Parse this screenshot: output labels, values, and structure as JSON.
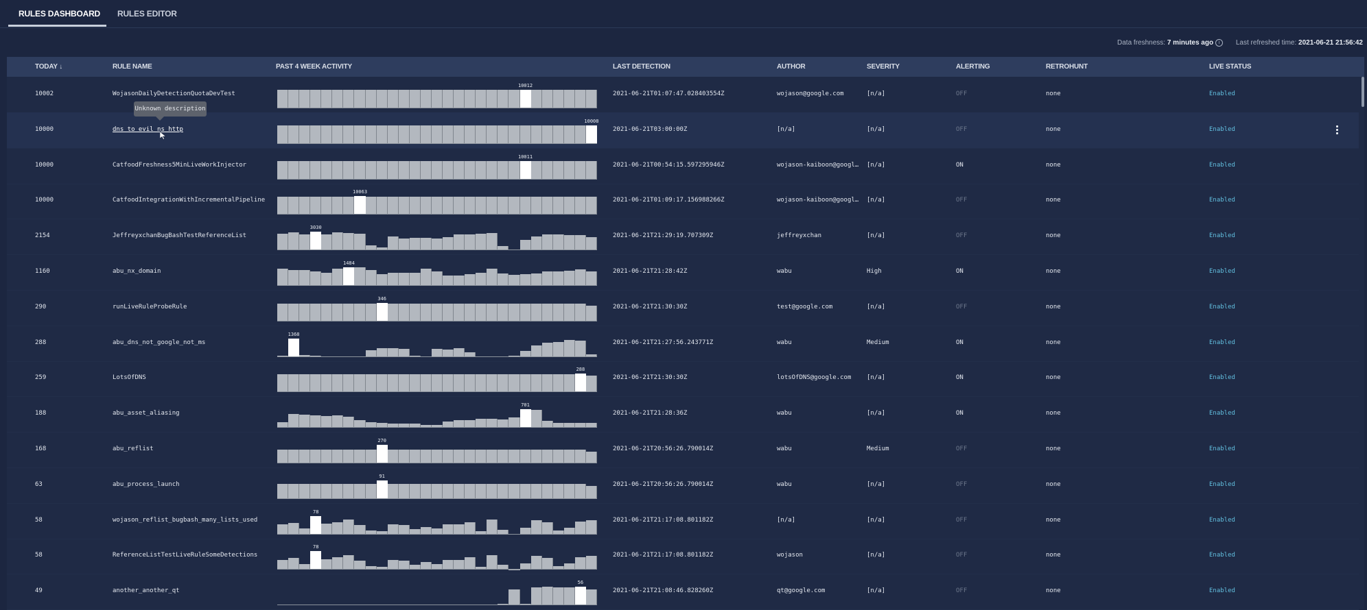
{
  "tabs": [
    {
      "label": "RULES DASHBOARD",
      "active": true
    },
    {
      "label": "RULES EDITOR",
      "active": false
    }
  ],
  "freshness": {
    "label": "Data freshness:",
    "value": "7 minutes ago",
    "refreshed_label": "Last refreshed time:",
    "refreshed_value": "2021-06-21 21:56:42"
  },
  "columns": [
    "TODAY ↓",
    "RULE NAME",
    "PAST 4 WEEK ACTIVITY",
    "LAST DETECTION",
    "AUTHOR",
    "SEVERITY",
    "ALERTING",
    "RETROHUNT",
    "LIVE STATUS"
  ],
  "tooltip": "Unknown description",
  "colors": {
    "background": "#1c2640",
    "header": "#2e3d5e",
    "enabled": "#62bfdf",
    "off": "#6c778b",
    "bar": "#b3b8bf",
    "peak_bar": "#ffffff"
  },
  "rows": [
    {
      "today": "10002",
      "name": "WojasonDailyDetectionQuotaDevTest",
      "last": "2021-06-21T01:07:47.028403554Z",
      "author": "wojason@google.com",
      "severity": "[n/a]",
      "alerting": "OFF",
      "retrohunt": "none",
      "status": "Enabled",
      "peak": "10012",
      "peak_index": 22,
      "activity": [
        10000,
        10000,
        10000,
        10000,
        10000,
        10000,
        10000,
        10000,
        10000,
        10000,
        10000,
        10000,
        10000,
        10000,
        10000,
        10000,
        10000,
        10000,
        10000,
        10000,
        10000,
        10000,
        10012,
        10000,
        10000,
        10000,
        10000,
        10000,
        10000
      ]
    },
    {
      "today": "10000",
      "name": "dns_to_evil_ns_http",
      "last": "2021-06-21T03:00:00Z",
      "author": "[n/a]",
      "severity": "[n/a]",
      "alerting": "OFF",
      "retrohunt": "none",
      "status": "Enabled",
      "peak": "10008",
      "peak_index": 28,
      "hover": true,
      "activity": [
        10000,
        10000,
        10000,
        10000,
        10000,
        10000,
        10000,
        10000,
        10000,
        10000,
        10000,
        10000,
        10000,
        10000,
        10000,
        10000,
        10000,
        10000,
        10000,
        10000,
        10000,
        10000,
        10000,
        10000,
        10000,
        10000,
        10000,
        10000,
        10008
      ]
    },
    {
      "today": "10000",
      "name": "CatfoodFreshness5MinLiveWorkInjector",
      "last": "2021-06-21T00:54:15.597295946Z",
      "author": "wojason-kaiboon@googl…",
      "severity": "[n/a]",
      "alerting": "ON",
      "retrohunt": "none",
      "status": "Enabled",
      "peak": "10011",
      "peak_index": 22,
      "activity": [
        10000,
        10000,
        10000,
        10000,
        10000,
        10000,
        10000,
        10000,
        10000,
        10000,
        10000,
        10000,
        10000,
        10000,
        10000,
        10000,
        10000,
        10000,
        10000,
        10000,
        10000,
        10000,
        10011,
        10000,
        10000,
        10000,
        10000,
        10000,
        10000
      ]
    },
    {
      "today": "10000",
      "name": "CatfoodIntegrationWithIncrementalPipeline",
      "last": "2021-06-21T01:09:17.156988266Z",
      "author": "wojason-kaiboon@googl…",
      "severity": "[n/a]",
      "alerting": "OFF",
      "retrohunt": "none",
      "status": "Enabled",
      "peak": "10063",
      "peak_index": 7,
      "activity": [
        10000,
        10000,
        10000,
        10000,
        10000,
        10000,
        10000,
        10063,
        10000,
        10000,
        10000,
        10000,
        10000,
        10000,
        10000,
        10000,
        10000,
        10000,
        10000,
        10000,
        10000,
        10000,
        10000,
        10000,
        10000,
        10000,
        10000,
        10000,
        10000
      ]
    },
    {
      "today": "2154",
      "name": "JeffreyxchanBugBashTestReferenceList",
      "last": "2021-06-21T21:29:19.707309Z",
      "author": "jeffreyxchan",
      "severity": "[n/a]",
      "alerting": "OFF",
      "retrohunt": "none",
      "status": "Enabled",
      "peak": "3030",
      "peak_index": 3,
      "activity": [
        2765,
        2990,
        2650,
        3030,
        2575,
        2990,
        2840,
        2765,
        760,
        455,
        2270,
        1970,
        2080,
        2080,
        1970,
        2200,
        2650,
        2650,
        2730,
        2840,
        680,
        190,
        1670,
        2270,
        2650,
        2650,
        2460,
        2540,
        2160
      ]
    },
    {
      "today": "1160",
      "name": "abu_nx_domain",
      "last": "2021-06-21T21:28:42Z",
      "author": "wabu",
      "severity": "High",
      "alerting": "ON",
      "retrohunt": "none",
      "status": "Enabled",
      "peak": "1484",
      "peak_index": 6,
      "activity": [
        1391,
        1261,
        1261,
        1169,
        1057,
        1391,
        1484,
        1460,
        1261,
        928,
        1057,
        1057,
        1057,
        1391,
        1150,
        835,
        835,
        928,
        1020,
        1354,
        965,
        872,
        928,
        965,
        1150,
        1150,
        1206,
        1336,
        1150
      ]
    },
    {
      "today": "290",
      "name": "runLiveRuleProbeRule",
      "last": "2021-06-21T21:30:30Z",
      "author": "test@google.com",
      "severity": "[n/a]",
      "alerting": "OFF",
      "retrohunt": "none",
      "status": "Enabled",
      "peak": "346",
      "peak_index": 9,
      "activity": [
        329,
        329,
        329,
        329,
        329,
        329,
        329,
        329,
        329,
        346,
        329,
        329,
        329,
        329,
        329,
        329,
        329,
        329,
        329,
        329,
        329,
        329,
        329,
        329,
        329,
        329,
        329,
        329,
        294
      ]
    },
    {
      "today": "288",
      "name": "abu_dns_not_google_not_ms",
      "last": "2021-06-21T21:27:56.243771Z",
      "author": "wabu",
      "severity": "Medium",
      "alerting": "ON",
      "retrohunt": "none",
      "status": "Enabled",
      "peak": "1368",
      "peak_index": 1,
      "activity": [
        86,
        1368,
        137,
        103,
        17,
        17,
        34,
        34,
        479,
        650,
        650,
        599,
        86,
        17,
        599,
        513,
        650,
        342,
        51,
        0,
        0,
        86,
        428,
        855,
        1060,
        1111,
        1231,
        1197,
        205
      ]
    },
    {
      "today": "259",
      "name": "LotsOfDNS",
      "last": "2021-06-21T21:30:30Z",
      "author": "lotsOfDNS@google.com",
      "severity": "[n/a]",
      "alerting": "ON",
      "retrohunt": "none",
      "status": "Enabled",
      "peak": "288",
      "peak_index": 27,
      "activity": [
        286,
        286,
        286,
        286,
        286,
        286,
        286,
        286,
        286,
        286,
        286,
        286,
        286,
        286,
        286,
        286,
        286,
        286,
        286,
        286,
        286,
        286,
        286,
        286,
        286,
        286,
        286,
        288,
        259
      ]
    },
    {
      "today": "188",
      "name": "abu_asset_aliasing",
      "last": "2021-06-21T21:28:36Z",
      "author": "wabu",
      "severity": "[n/a]",
      "alerting": "ON",
      "retrohunt": "none",
      "status": "Enabled",
      "peak": "701",
      "peak_index": 22,
      "activity": [
        219,
        526,
        499,
        482,
        456,
        464,
        420,
        280,
        219,
        193,
        149,
        158,
        158,
        105,
        105,
        245,
        280,
        280,
        333,
        350,
        307,
        394,
        701,
        683,
        263,
        175,
        175,
        193,
        175
      ]
    },
    {
      "today": "168",
      "name": "abu_reflist",
      "last": "2021-06-21T20:56:26.790014Z",
      "author": "wabu",
      "severity": "Medium",
      "alerting": "OFF",
      "retrohunt": "none",
      "status": "Enabled",
      "peak": "270",
      "peak_index": 9,
      "activity": [
        196,
        196,
        196,
        196,
        196,
        196,
        196,
        196,
        196,
        270,
        196,
        196,
        196,
        196,
        196,
        196,
        196,
        196,
        196,
        196,
        196,
        196,
        196,
        196,
        196,
        196,
        196,
        196,
        169
      ]
    },
    {
      "today": "63",
      "name": "abu_process_launch",
      "last": "2021-06-21T20:56:26.790014Z",
      "author": "wabu",
      "severity": "[n/a]",
      "alerting": "OFF",
      "retrohunt": "none",
      "status": "Enabled",
      "peak": "91",
      "peak_index": 9,
      "activity": [
        72,
        72,
        72,
        72,
        72,
        72,
        72,
        72,
        72,
        91,
        72,
        72,
        72,
        72,
        72,
        72,
        72,
        72,
        72,
        72,
        72,
        72,
        72,
        72,
        72,
        72,
        72,
        72,
        63
      ]
    },
    {
      "today": "58",
      "name": "wojason_reflist_bugbash_many_lists_used",
      "last": "2021-06-21T21:17:08.801182Z",
      "author": "[n/a]",
      "severity": "[n/a]",
      "alerting": "OFF",
      "retrohunt": "none",
      "status": "Enabled",
      "peak": "78",
      "peak_index": 3,
      "activity": [
        42,
        49,
        24,
        78,
        44,
        52,
        61,
        39,
        17,
        13,
        41,
        39,
        22,
        32,
        24,
        41,
        42,
        52,
        12,
        63,
        20,
        2,
        27,
        59,
        51,
        17,
        27,
        54,
        59
      ]
    },
    {
      "today": "58",
      "name": "ReferenceListTestLiveRuleSomeDetections",
      "last": "2021-06-21T21:17:08.801182Z",
      "author": "wojason",
      "severity": "[n/a]",
      "alerting": "OFF",
      "retrohunt": "none",
      "status": "Enabled",
      "peak": "78",
      "peak_index": 3,
      "activity": [
        42,
        49,
        24,
        78,
        44,
        52,
        61,
        39,
        17,
        13,
        41,
        39,
        22,
        32,
        24,
        41,
        42,
        52,
        12,
        63,
        20,
        2,
        27,
        59,
        51,
        17,
        27,
        54,
        59
      ]
    },
    {
      "today": "49",
      "name": "another_another_qt",
      "last": "2021-06-21T21:08:46.828260Z",
      "author": "qt@google.com",
      "severity": "[n/a]",
      "alerting": "OFF",
      "retrohunt": "none",
      "status": "Enabled",
      "peak": "56",
      "peak_index": 27,
      "activity": [
        0,
        0,
        0,
        0,
        0,
        0,
        0,
        0,
        0,
        0,
        0,
        0,
        0,
        0,
        0,
        0,
        0,
        0,
        0,
        0,
        4,
        49,
        4,
        55,
        56,
        55,
        55,
        56,
        49
      ]
    }
  ]
}
